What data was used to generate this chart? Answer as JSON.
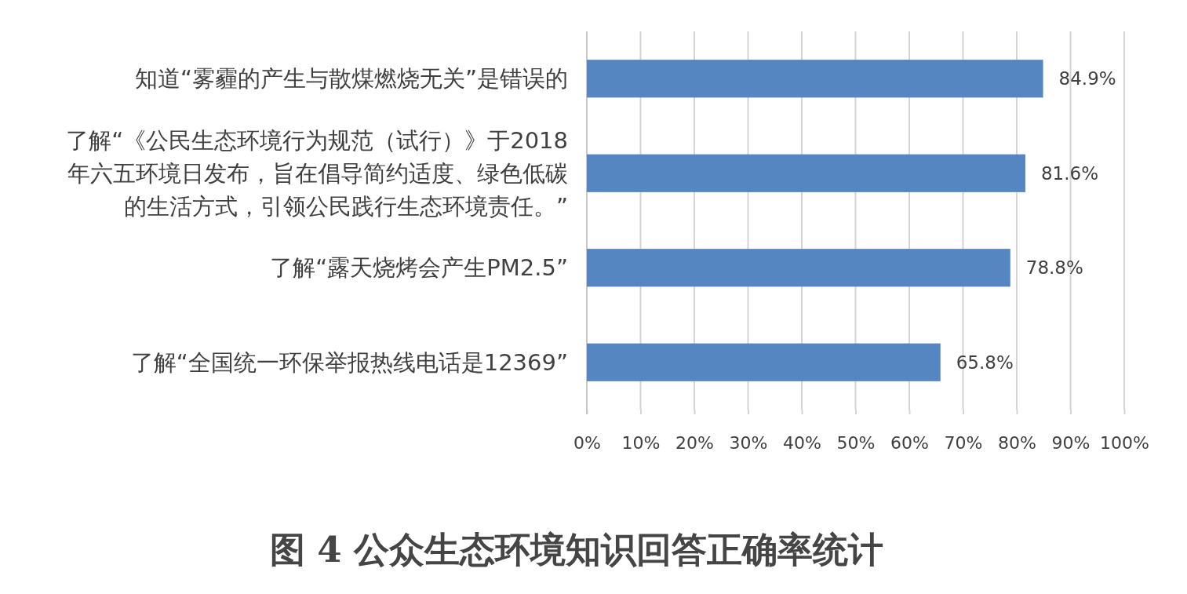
{
  "chart_data": {
    "type": "bar",
    "orientation": "horizontal",
    "title": "图 4 公众生态环境知识回答正确率统计",
    "categories": [
      "知道“雾霾的产生与散煤燃烧无关”是错误的",
      "了解“《公民生态环境行为规范（试行）》于2018年六五环境日发布，旨在倡导简约适度、绿色低碳的生活方式，引领公民践行生态环境责任。”",
      "了解“露天烧烤会产生PM2.5”",
      "了解“全国统一环保举报热线电话是12369”"
    ],
    "values": [
      84.9,
      81.6,
      78.8,
      65.8
    ],
    "color": "#5586c1",
    "value_labels": [
      "84.9%",
      "81.6%",
      "78.8%",
      "65.8%"
    ],
    "xlim": [
      0,
      100
    ],
    "xticks": [
      {
        "value": 0,
        "label": "0%"
      },
      {
        "value": 10,
        "label": "10%"
      },
      {
        "value": 20,
        "label": "20%"
      },
      {
        "value": 30,
        "label": "30%"
      },
      {
        "value": 40,
        "label": "40%"
      },
      {
        "value": 50,
        "label": "50%"
      },
      {
        "value": 60,
        "label": "60%"
      },
      {
        "value": 70,
        "label": "70%"
      },
      {
        "value": 80,
        "label": "80%"
      },
      {
        "value": 90,
        "label": "90%"
      },
      {
        "value": 100,
        "label": "100%"
      }
    ],
    "grid": "x"
  }
}
